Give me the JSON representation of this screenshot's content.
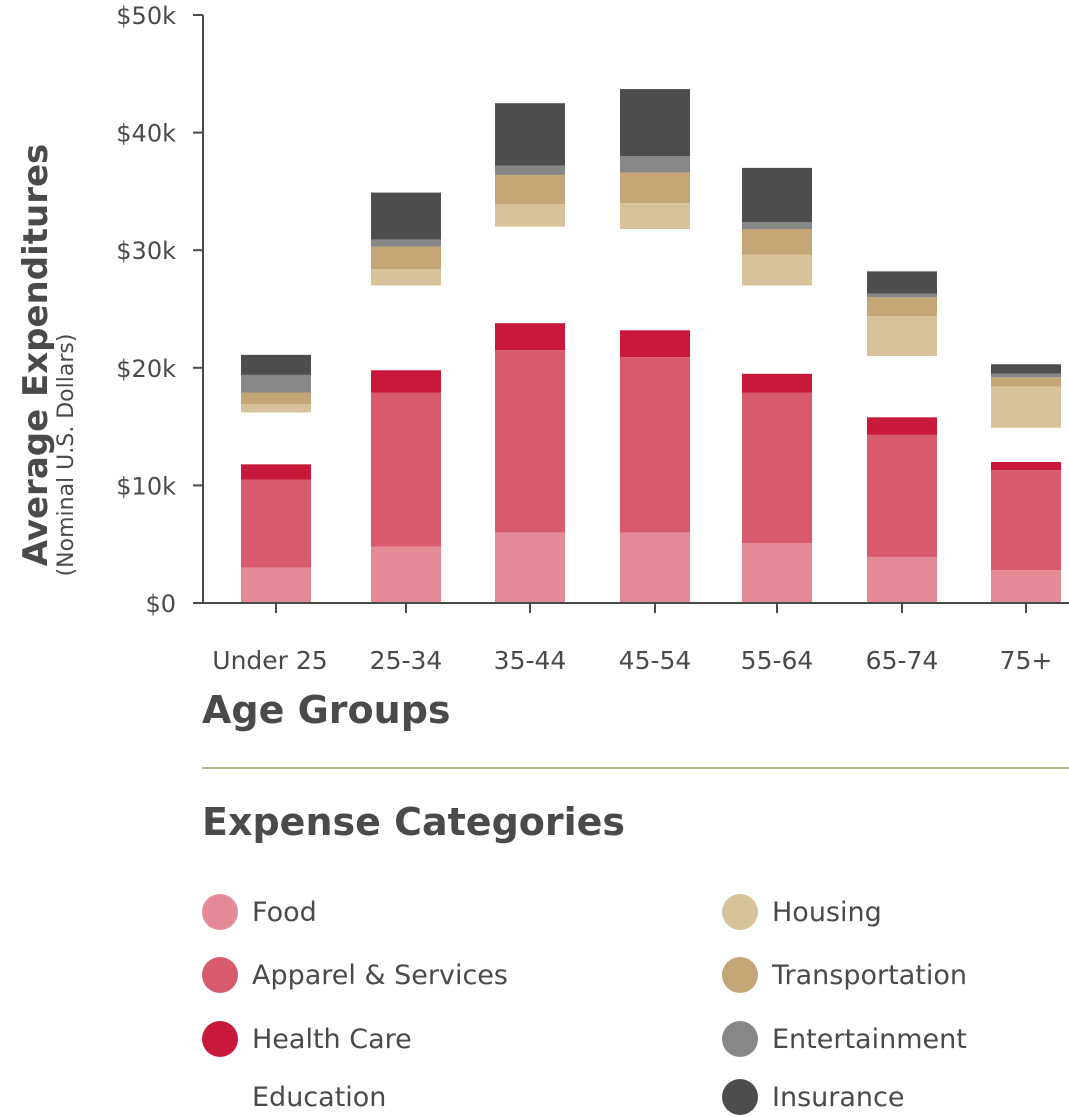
{
  "chart_data": {
    "type": "bar",
    "stacked": true,
    "ylabel": "Average Expenditures",
    "ylabel_sub": "(Nominal U.S. Dollars)",
    "xlabel": "Age Groups",
    "ylim": [
      0,
      50000
    ],
    "yticks": [
      0,
      10000,
      20000,
      30000,
      40000,
      50000
    ],
    "ytick_labels": [
      "$0",
      "$10k",
      "$20k",
      "$30k",
      "$40k",
      "$50k"
    ],
    "categories": [
      "Under 25",
      "25-34",
      "35-44",
      "45-54",
      "55-64",
      "65-74",
      "75+"
    ],
    "series": [
      {
        "name": "Food",
        "color": "#e48a97",
        "values": [
          3000,
          4800,
          6000,
          6000,
          5100,
          3900,
          2800
        ]
      },
      {
        "name": "Apparel & Services",
        "color": "#d75b6d",
        "values": [
          7500,
          13100,
          15500,
          14900,
          12800,
          10400,
          8500
        ]
      },
      {
        "name": "Health Care",
        "color": "#c8193a",
        "values": [
          1300,
          1900,
          2300,
          2300,
          1600,
          1500,
          700
        ]
      },
      {
        "name": "Education",
        "color": "#ffffff",
        "values": [
          4400,
          7200,
          8200,
          8600,
          7500,
          5200,
          2900
        ]
      },
      {
        "name": "Housing",
        "color": "#d8c29c",
        "values": [
          700,
          1400,
          1900,
          2200,
          2600,
          3400,
          3500
        ]
      },
      {
        "name": "Transportation",
        "color": "#c4a676",
        "values": [
          1000,
          1900,
          2500,
          2600,
          2200,
          1600,
          800
        ]
      },
      {
        "name": "Entertainment",
        "color": "#878787",
        "values": [
          1500,
          600,
          800,
          1400,
          600,
          300,
          300
        ]
      },
      {
        "name": "Insurance",
        "color": "#4d4d4d",
        "values": [
          1700,
          4000,
          5300,
          5700,
          4600,
          1900,
          800
        ]
      }
    ]
  },
  "legend": {
    "title": "Expense Categories",
    "items": [
      {
        "label": "Food",
        "color": "#e48a97"
      },
      {
        "label": "Housing",
        "color": "#d8c29c"
      },
      {
        "label": "Apparel & Services",
        "color": "#d75b6d"
      },
      {
        "label": "Transportation",
        "color": "#c4a676"
      },
      {
        "label": "Health Care",
        "color": "#c8193a"
      },
      {
        "label": "Entertainment",
        "color": "#878787"
      },
      {
        "label": "Education",
        "color": "#ffffff"
      },
      {
        "label": "Insurance",
        "color": "#4d4d4d"
      }
    ]
  }
}
